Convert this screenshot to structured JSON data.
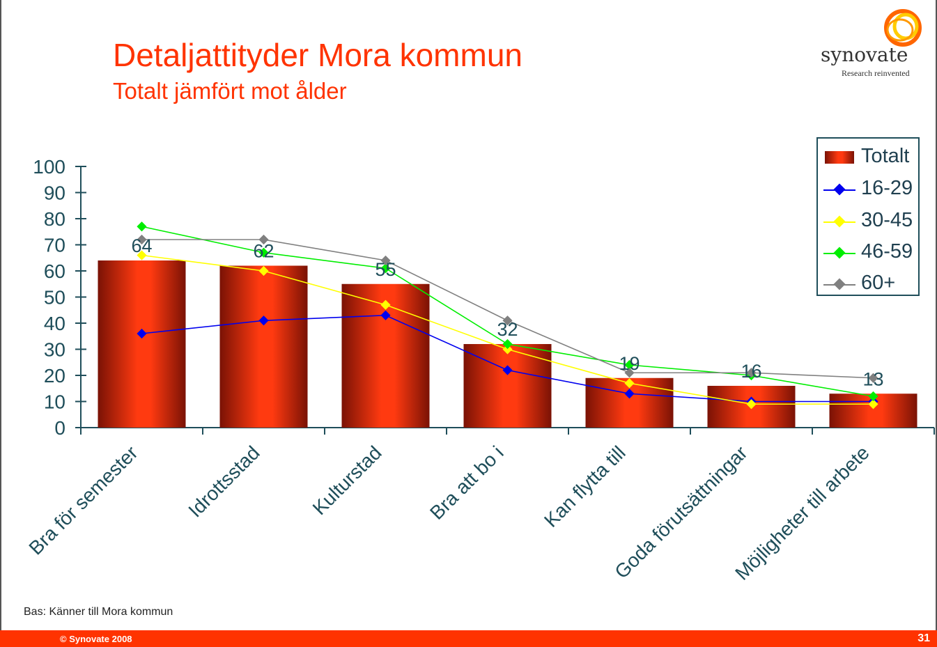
{
  "slide": {
    "title": "Detaljattityder Mora kommun",
    "subtitle": "Totalt jämfört mot ålder",
    "logo_text": "synovate",
    "logo_tagline": "Research reinvented",
    "footnote": "Bas: Känner till Mora kommun",
    "copyright": "© Synovate 2008",
    "page_number": "31"
  },
  "colors": {
    "accent": "#ff3300",
    "axis": "#1f4e5a",
    "bar": "#e8300e",
    "bar_dark": "#7a1205"
  },
  "chart_data": {
    "type": "bar",
    "title": "",
    "xlabel": "",
    "ylabel": "",
    "ylim": [
      0,
      100
    ],
    "yticks": [
      "0",
      "10",
      "20",
      "30",
      "40",
      "50",
      "60",
      "70",
      "80",
      "90",
      "100"
    ],
    "grid": false,
    "legend_position": "top-right",
    "categories": [
      "Bra för semester",
      "Idrottsstad",
      "Kulturstad",
      "Bra att bo i",
      "Kan flytta till",
      "Goda förutsättningar",
      "Möjligheter till arbete"
    ],
    "bar_series": {
      "name": "Totalt",
      "values": [
        64,
        62,
        55,
        32,
        19,
        16,
        13
      ],
      "labels": [
        "64",
        "62",
        "55",
        "32",
        "19",
        "16",
        "13"
      ]
    },
    "line_series": [
      {
        "name": "16-29",
        "color": "#0000ee",
        "values": [
          36,
          41,
          43,
          22,
          13,
          10,
          10
        ]
      },
      {
        "name": "30-45",
        "color": "#ffff00",
        "values": [
          66,
          60,
          47,
          30,
          17,
          9,
          9
        ]
      },
      {
        "name": "46-59",
        "color": "#00ee00",
        "values": [
          77,
          67,
          61,
          32,
          24,
          20,
          12
        ]
      },
      {
        "name": "60+",
        "color": "#808080",
        "values": [
          72,
          72,
          64,
          41,
          21,
          21,
          19
        ]
      }
    ]
  }
}
